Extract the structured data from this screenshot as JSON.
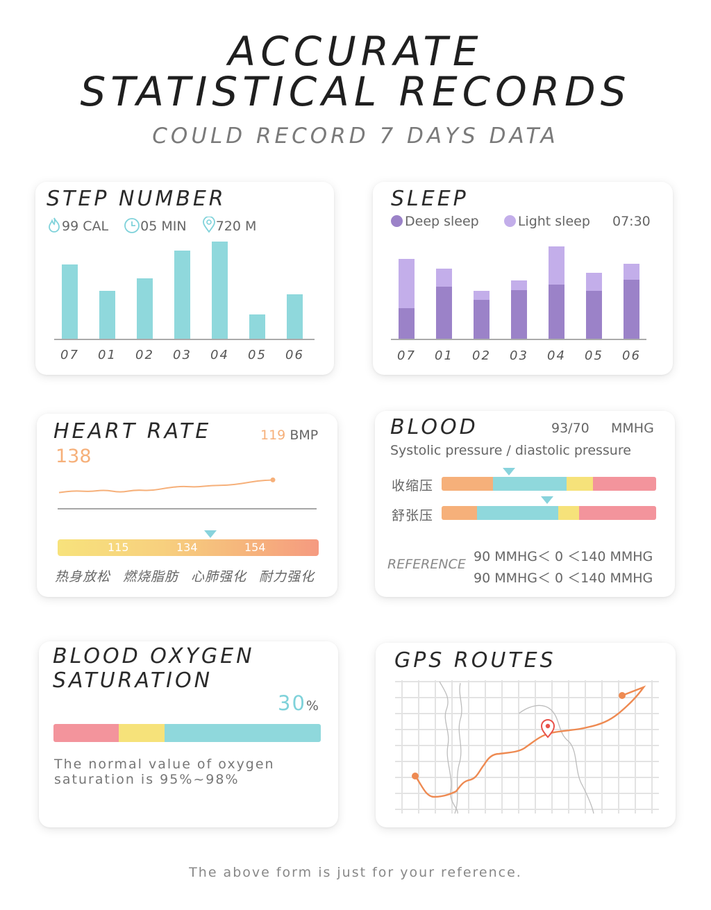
{
  "header": {
    "title_line1": "ACCURATE",
    "title_line2": "STATISTICAL RECORDS",
    "subtitle": "COULD RECORD 7 DAYS DATA"
  },
  "step": {
    "title": "STEP NUMBER",
    "cal": "99 CAL",
    "min": "05 MIN",
    "dist": "720 M"
  },
  "sleep": {
    "title": "SLEEP",
    "deep_label": "Deep sleep",
    "light_label": "Light sleep",
    "time": "07:30"
  },
  "heart": {
    "title": "HEART RATE",
    "current_value": "119",
    "current_unit": "BMP",
    "max_value": "138",
    "ticks": [
      "115",
      "134",
      "154"
    ],
    "zones": [
      "热身放松",
      "燃烧脂肪",
      "心肺强化",
      "耐力强化"
    ]
  },
  "blood": {
    "title": "BLOOD",
    "value": "93/70",
    "unit": "MMHG",
    "desc": "Systolic pressure / diastolic pressure",
    "systolic_label": "收缩压",
    "diastolic_label": "舒张压",
    "reference_label": "REFERENCE",
    "ref_line1": "90 MMHG＜ 0 ＜140 MMHG",
    "ref_line2": "90 MMHG＜ 0 ＜140 MMHG"
  },
  "oxygen": {
    "title_line1": "BLOOD OXYGEN",
    "title_line2": "SATURATION",
    "value": "30",
    "unit": "%",
    "note_line1": "The normal value of oxygen",
    "note_line2": "saturation is 95%~98%"
  },
  "gps": {
    "title": "GPS ROUTES"
  },
  "footer": {
    "text": "The above form is just for your reference."
  },
  "colors": {
    "teal": "#8fd8dc",
    "deep": "#9b82c8",
    "light": "#c3aeea",
    "orange": "#f6b07a",
    "yellow": "#f6e27a",
    "pink": "#f3949c",
    "route": "#ee8a52"
  },
  "chart_data": [
    {
      "type": "bar",
      "title": "STEP NUMBER",
      "categories": [
        "07",
        "01",
        "02",
        "03",
        "04",
        "05",
        "06"
      ],
      "values": [
        107,
        69,
        87,
        127,
        140,
        35,
        64
      ],
      "ylim": [
        0,
        150
      ]
    },
    {
      "type": "bar",
      "title": "SLEEP",
      "categories": [
        "07",
        "01",
        "02",
        "03",
        "04",
        "05",
        "06"
      ],
      "series": [
        {
          "name": "Deep sleep",
          "values": [
            44,
            75,
            56,
            70,
            78,
            69,
            85
          ]
        },
        {
          "name": "Light sleep",
          "values": [
            71,
            26,
            13,
            14,
            55,
            26,
            23
          ]
        }
      ],
      "ylim": [
        0,
        150
      ]
    },
    {
      "type": "line",
      "title": "HEART RATE",
      "x": [
        0,
        1,
        2,
        3,
        4,
        5,
        6,
        7,
        8,
        9,
        10,
        11,
        12,
        13,
        14
      ],
      "values": [
        108,
        110,
        109,
        111,
        108,
        111,
        110,
        113,
        115,
        114,
        116,
        116,
        118,
        121,
        122
      ]
    }
  ]
}
